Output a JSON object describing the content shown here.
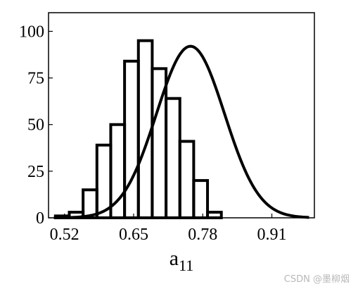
{
  "chart_data": {
    "type": "bar",
    "title": "",
    "xlabel": {
      "main": "a",
      "sub": "11"
    },
    "ylabel": "",
    "xticks": [
      0.52,
      0.65,
      0.78,
      0.91
    ],
    "xtick_labels": [
      "0.52",
      "0.65",
      "0.78",
      "0.91"
    ],
    "yticks": [
      0,
      25,
      50,
      75,
      100
    ],
    "ytick_labels": [
      "0",
      "25",
      "50",
      "75",
      "100"
    ],
    "xlim": [
      0.49,
      0.99
    ],
    "ylim": [
      0,
      110
    ],
    "bin_width": 0.026,
    "bins": [
      {
        "center": 0.516,
        "value": 1
      },
      {
        "center": 0.542,
        "value": 3
      },
      {
        "center": 0.568,
        "value": 15
      },
      {
        "center": 0.594,
        "value": 39
      },
      {
        "center": 0.62,
        "value": 50
      },
      {
        "center": 0.646,
        "value": 84
      },
      {
        "center": 0.672,
        "value": 95
      },
      {
        "center": 0.698,
        "value": 80
      },
      {
        "center": 0.724,
        "value": 64
      },
      {
        "center": 0.75,
        "value": 41
      },
      {
        "center": 0.776,
        "value": 20
      },
      {
        "center": 0.802,
        "value": 3
      },
      {
        "center": 0.828,
        "value": 0
      }
    ],
    "curve": {
      "type": "normal_density",
      "mean": 0.757,
      "sd": 0.064,
      "peak": 92
    },
    "grid": false,
    "legend": "none"
  },
  "watermark": "CSDN @墨柳烟"
}
